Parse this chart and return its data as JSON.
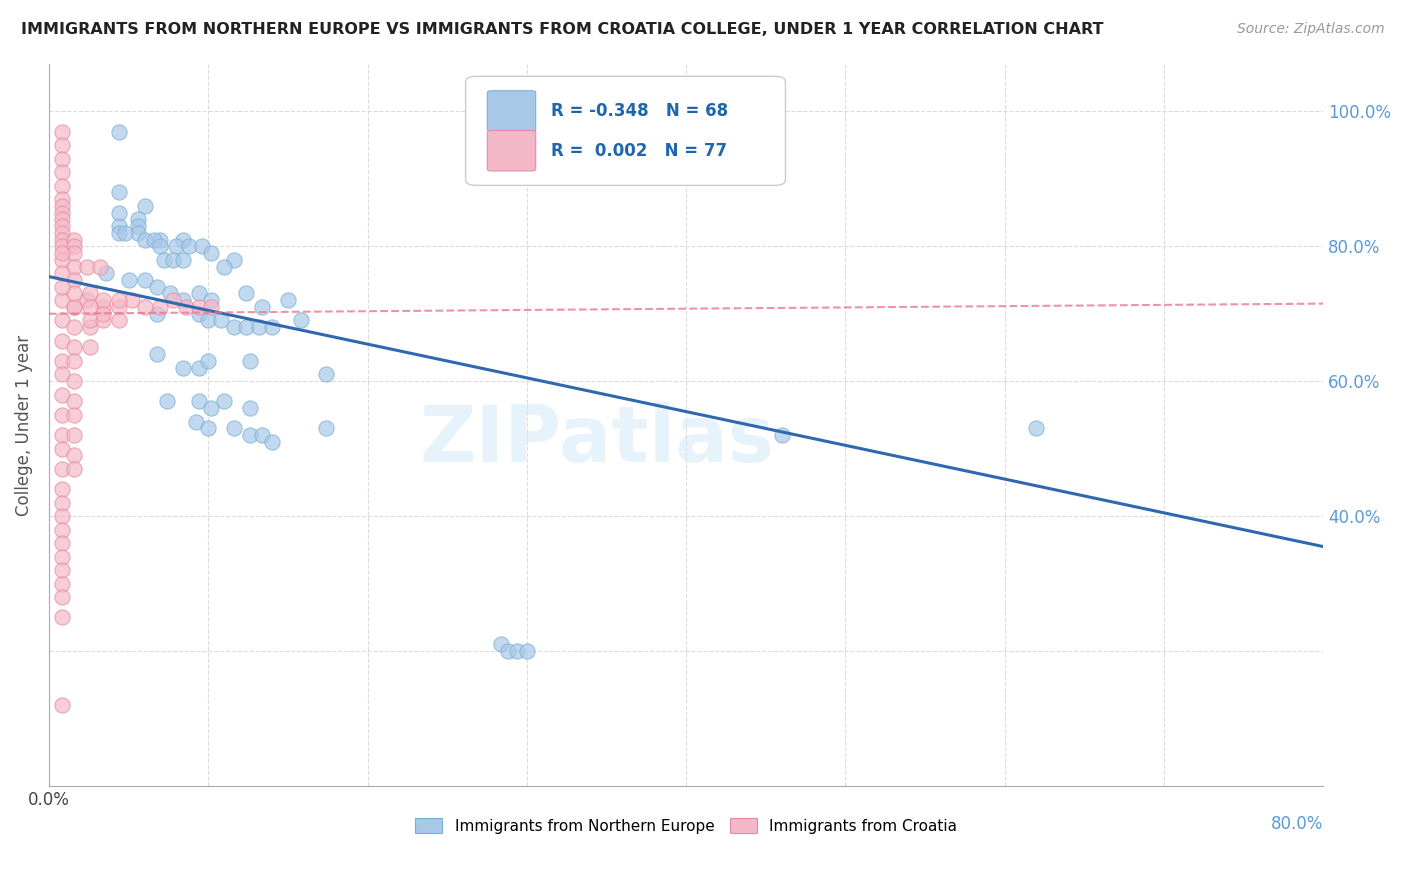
{
  "title": "IMMIGRANTS FROM NORTHERN EUROPE VS IMMIGRANTS FROM CROATIA COLLEGE, UNDER 1 YEAR CORRELATION CHART",
  "source": "Source: ZipAtlas.com",
  "legend_label1": "Immigrants from Northern Europe",
  "legend_label2": "Immigrants from Croatia",
  "R1": "-0.348",
  "N1": "68",
  "R2": "0.002",
  "N2": "77",
  "blue_color": "#a8c8e8",
  "pink_color": "#f4b8c8",
  "blue_edge": "#7ab0d4",
  "pink_edge": "#e88aa0",
  "line_blue": "#3068b0",
  "line_pink": "#e87890",
  "watermark": "ZIPatlas",
  "blue_scatter": [
    [
      0.22,
      0.97
    ],
    [
      0.22,
      0.88
    ],
    [
      0.3,
      0.86
    ],
    [
      0.22,
      0.85
    ],
    [
      0.28,
      0.84
    ],
    [
      0.28,
      0.83
    ],
    [
      0.22,
      0.83
    ],
    [
      0.28,
      0.82
    ],
    [
      0.22,
      0.82
    ],
    [
      0.24,
      0.82
    ],
    [
      0.3,
      0.81
    ],
    [
      0.35,
      0.81
    ],
    [
      0.33,
      0.81
    ],
    [
      0.35,
      0.8
    ],
    [
      0.42,
      0.81
    ],
    [
      0.4,
      0.8
    ],
    [
      0.44,
      0.8
    ],
    [
      0.48,
      0.8
    ],
    [
      0.51,
      0.79
    ],
    [
      0.36,
      0.78
    ],
    [
      0.39,
      0.78
    ],
    [
      0.42,
      0.78
    ],
    [
      0.58,
      0.78
    ],
    [
      0.55,
      0.77
    ],
    [
      0.18,
      0.76
    ],
    [
      0.25,
      0.75
    ],
    [
      0.3,
      0.75
    ],
    [
      0.34,
      0.74
    ],
    [
      0.38,
      0.73
    ],
    [
      0.42,
      0.72
    ],
    [
      0.47,
      0.73
    ],
    [
      0.51,
      0.72
    ],
    [
      0.62,
      0.73
    ],
    [
      0.67,
      0.71
    ],
    [
      0.75,
      0.72
    ],
    [
      0.34,
      0.7
    ],
    [
      0.47,
      0.7
    ],
    [
      0.5,
      0.69
    ],
    [
      0.54,
      0.69
    ],
    [
      0.58,
      0.68
    ],
    [
      0.62,
      0.68
    ],
    [
      0.66,
      0.68
    ],
    [
      0.7,
      0.68
    ],
    [
      0.79,
      0.69
    ],
    [
      0.34,
      0.64
    ],
    [
      0.42,
      0.62
    ],
    [
      0.47,
      0.62
    ],
    [
      0.5,
      0.63
    ],
    [
      0.63,
      0.63
    ],
    [
      0.87,
      0.61
    ],
    [
      0.37,
      0.57
    ],
    [
      0.47,
      0.57
    ],
    [
      0.51,
      0.56
    ],
    [
      0.55,
      0.57
    ],
    [
      0.63,
      0.56
    ],
    [
      0.46,
      0.54
    ],
    [
      0.5,
      0.53
    ],
    [
      0.58,
      0.53
    ],
    [
      0.63,
      0.52
    ],
    [
      0.67,
      0.52
    ],
    [
      0.7,
      0.51
    ],
    [
      0.87,
      0.53
    ],
    [
      2.3,
      0.52
    ],
    [
      3.1,
      0.53
    ],
    [
      1.42,
      0.21
    ],
    [
      1.44,
      0.2
    ],
    [
      1.47,
      0.2
    ],
    [
      1.5,
      0.2
    ]
  ],
  "pink_scatter": [
    [
      0.04,
      0.97
    ],
    [
      0.04,
      0.95
    ],
    [
      0.04,
      0.93
    ],
    [
      0.04,
      0.91
    ],
    [
      0.04,
      0.89
    ],
    [
      0.04,
      0.87
    ],
    [
      0.04,
      0.86
    ],
    [
      0.04,
      0.85
    ],
    [
      0.04,
      0.84
    ],
    [
      0.04,
      0.83
    ],
    [
      0.04,
      0.82
    ],
    [
      0.04,
      0.81
    ],
    [
      0.04,
      0.8
    ],
    [
      0.08,
      0.81
    ],
    [
      0.08,
      0.8
    ],
    [
      0.08,
      0.79
    ],
    [
      0.04,
      0.78
    ],
    [
      0.08,
      0.77
    ],
    [
      0.12,
      0.77
    ],
    [
      0.16,
      0.77
    ],
    [
      0.04,
      0.72
    ],
    [
      0.08,
      0.71
    ],
    [
      0.12,
      0.72
    ],
    [
      0.17,
      0.71
    ],
    [
      0.22,
      0.71
    ],
    [
      0.26,
      0.72
    ],
    [
      0.3,
      0.71
    ],
    [
      0.35,
      0.71
    ],
    [
      0.39,
      0.72
    ],
    [
      0.43,
      0.71
    ],
    [
      0.47,
      0.71
    ],
    [
      0.51,
      0.71
    ],
    [
      0.04,
      0.69
    ],
    [
      0.08,
      0.68
    ],
    [
      0.13,
      0.68
    ],
    [
      0.04,
      0.66
    ],
    [
      0.08,
      0.65
    ],
    [
      0.13,
      0.65
    ],
    [
      0.04,
      0.63
    ],
    [
      0.08,
      0.63
    ],
    [
      0.04,
      0.61
    ],
    [
      0.08,
      0.6
    ],
    [
      0.04,
      0.58
    ],
    [
      0.08,
      0.57
    ],
    [
      0.04,
      0.55
    ],
    [
      0.08,
      0.55
    ],
    [
      0.04,
      0.52
    ],
    [
      0.08,
      0.52
    ],
    [
      0.04,
      0.5
    ],
    [
      0.08,
      0.49
    ],
    [
      0.04,
      0.47
    ],
    [
      0.08,
      0.47
    ],
    [
      0.04,
      0.44
    ],
    [
      0.04,
      0.42
    ],
    [
      0.04,
      0.4
    ],
    [
      0.04,
      0.38
    ],
    [
      0.04,
      0.36
    ],
    [
      0.04,
      0.34
    ],
    [
      0.04,
      0.32
    ],
    [
      0.04,
      0.3
    ],
    [
      0.04,
      0.28
    ],
    [
      0.04,
      0.25
    ],
    [
      0.04,
      0.12
    ],
    [
      0.08,
      0.71
    ],
    [
      0.13,
      0.69
    ],
    [
      0.17,
      0.69
    ],
    [
      0.22,
      0.69
    ],
    [
      0.08,
      0.75
    ],
    [
      0.08,
      0.73
    ],
    [
      0.13,
      0.73
    ],
    [
      0.17,
      0.72
    ],
    [
      0.22,
      0.72
    ],
    [
      0.13,
      0.71
    ],
    [
      0.17,
      0.7
    ],
    [
      0.04,
      0.74
    ],
    [
      0.04,
      0.76
    ],
    [
      0.04,
      0.79
    ]
  ],
  "blue_line_x": [
    0.0,
    4.0
  ],
  "blue_line_y": [
    0.755,
    0.355
  ],
  "pink_line_x": [
    0.0,
    4.0
  ],
  "pink_line_y": [
    0.7,
    0.715
  ],
  "xlim": [
    0.0,
    4.0
  ],
  "ylim": [
    0.0,
    1.07
  ],
  "xticklabels_left": "0.0%",
  "xticklabels_right": "80.0%",
  "right_yticks": [
    0.4,
    0.6,
    0.8,
    1.0
  ],
  "right_yticklabels": [
    "40.0%",
    "60.0%",
    "80.0%",
    "100.0%"
  ],
  "ylabel": "College, Under 1 year",
  "grid_color": "#cccccc",
  "background_color": "#ffffff",
  "legend_box_color": "#ffffff",
  "legend_border_color": "#cccccc"
}
